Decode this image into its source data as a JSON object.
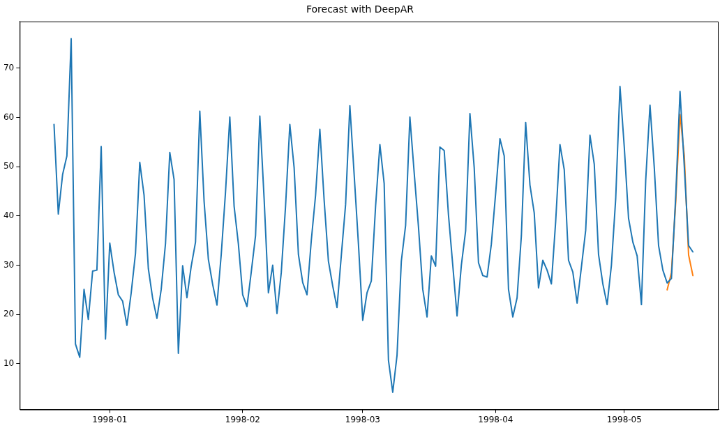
{
  "chart_data": {
    "type": "line",
    "title": "Forecast with DeepAR",
    "x": [
      "1997-12-19",
      "1997-12-20",
      "1997-12-21",
      "1997-12-22",
      "1997-12-23",
      "1997-12-24",
      "1997-12-25",
      "1997-12-26",
      "1997-12-27",
      "1997-12-28",
      "1997-12-29",
      "1997-12-30",
      "1997-12-31",
      "1998-01-01",
      "1998-01-02",
      "1998-01-03",
      "1998-01-04",
      "1998-01-05",
      "1998-01-06",
      "1998-01-07",
      "1998-01-08",
      "1998-01-09",
      "1998-01-10",
      "1998-01-11",
      "1998-01-12",
      "1998-01-13",
      "1998-01-14",
      "1998-01-15",
      "1998-01-16",
      "1998-01-17",
      "1998-01-18",
      "1998-01-19",
      "1998-01-20",
      "1998-01-21",
      "1998-01-22",
      "1998-01-23",
      "1998-01-24",
      "1998-01-25",
      "1998-01-26",
      "1998-01-27",
      "1998-01-28",
      "1998-01-29",
      "1998-01-30",
      "1998-01-31",
      "1998-02-01",
      "1998-02-02",
      "1998-02-03",
      "1998-02-04",
      "1998-02-05",
      "1998-02-06",
      "1998-02-07",
      "1998-02-08",
      "1998-02-09",
      "1998-02-10",
      "1998-02-11",
      "1998-02-12",
      "1998-02-13",
      "1998-02-14",
      "1998-02-15",
      "1998-02-16",
      "1998-02-17",
      "1998-02-18",
      "1998-02-19",
      "1998-02-20",
      "1998-02-21",
      "1998-02-22",
      "1998-02-23",
      "1998-02-24",
      "1998-02-25",
      "1998-02-26",
      "1998-02-27",
      "1998-02-28",
      "1998-03-01",
      "1998-03-02",
      "1998-03-03",
      "1998-03-04",
      "1998-03-05",
      "1998-03-06",
      "1998-03-07",
      "1998-03-08",
      "1998-03-09",
      "1998-03-10",
      "1998-03-11",
      "1998-03-12",
      "1998-03-13",
      "1998-03-14",
      "1998-03-15",
      "1998-03-16",
      "1998-03-17",
      "1998-03-18",
      "1998-03-19",
      "1998-03-20",
      "1998-03-21",
      "1998-03-22",
      "1998-03-23",
      "1998-03-24",
      "1998-03-25",
      "1998-03-26",
      "1998-03-27",
      "1998-03-28",
      "1998-03-29",
      "1998-03-30",
      "1998-03-31",
      "1998-04-01",
      "1998-04-02",
      "1998-04-03",
      "1998-04-04",
      "1998-04-05",
      "1998-04-06",
      "1998-04-07",
      "1998-04-08",
      "1998-04-09",
      "1998-04-10",
      "1998-04-11",
      "1998-04-12",
      "1998-04-13",
      "1998-04-14",
      "1998-04-15",
      "1998-04-16",
      "1998-04-17",
      "1998-04-18",
      "1998-04-19",
      "1998-04-20",
      "1998-04-21",
      "1998-04-22",
      "1998-04-23",
      "1998-04-24",
      "1998-04-25",
      "1998-04-26",
      "1998-04-27",
      "1998-04-28",
      "1998-04-29",
      "1998-04-30",
      "1998-05-01",
      "1998-05-02",
      "1998-05-03",
      "1998-05-04",
      "1998-05-05",
      "1998-05-06",
      "1998-05-07",
      "1998-05-08",
      "1998-05-09",
      "1998-05-10",
      "1998-05-11",
      "1998-05-12",
      "1998-05-13",
      "1998-05-14",
      "1998-05-15",
      "1998-05-16",
      "1998-05-17"
    ],
    "series": [
      {
        "color": "#1f77b4",
        "values": [
          58.6,
          40.4,
          48.4,
          52.2,
          76,
          14,
          11.3,
          25.1,
          19,
          28.8,
          29,
          54.1,
          15,
          34.5,
          28.6,
          24,
          22.7,
          17.8,
          24.4,
          32.4,
          50.9,
          44.2,
          29.3,
          23.3,
          19.2,
          25.1,
          34.4,
          52.9,
          47.4,
          12.1,
          29.9,
          23.4,
          29.8,
          34.7,
          61.3,
          43,
          31.2,
          26.1,
          21.9,
          32.2,
          44.9,
          60.1,
          42,
          34.3,
          24,
          21.6,
          28.6,
          36,
          60.3,
          43.5,
          24.4,
          30,
          20.2,
          28.5,
          42,
          58.6,
          49.8,
          32.2,
          26.5,
          24,
          35,
          44.2,
          57.6,
          43.2,
          30.8,
          25.8,
          21.4,
          31.9,
          42.3,
          62.4,
          48.4,
          34.3,
          18.8,
          24.4,
          26.8,
          42,
          54.5,
          46.6,
          10.7,
          4.2,
          11.7,
          30.8,
          38.1,
          60.1,
          48.8,
          37.8,
          25.1,
          19.5,
          31.9,
          29.8,
          54,
          53.3,
          40.2,
          30,
          19.7,
          30,
          37,
          60.8,
          49.8,
          30.5,
          27.9,
          27.6,
          34.3,
          44.6,
          55.7,
          52.2,
          25.1,
          19.5,
          23.4,
          36,
          59,
          46.3,
          40.6,
          25.4,
          31,
          29,
          26.2,
          38.9,
          54.5,
          49.4,
          31,
          28.6,
          22.3,
          29.6,
          37.1,
          56.4,
          50.5,
          32.2,
          26.2,
          22,
          30,
          43.5,
          66.3,
          54,
          39.5,
          34.7,
          31.9,
          22,
          47.3,
          62.5,
          49.8,
          34,
          29,
          26.4,
          27.3,
          44,
          65.3,
          50,
          34,
          32.7
        ]
      },
      {
        "color": "#ff7f0e",
        "x": [
          "1998-05-11",
          "1998-05-12",
          "1998-05-13",
          "1998-05-14",
          "1998-05-15",
          "1998-05-16",
          "1998-05-17"
        ],
        "values": [
          25,
          28.5,
          42.9,
          60.6,
          52.2,
          32.1,
          27.9
        ]
      }
    ],
    "xlim": [
      "1997-12-11",
      "1998-05-23"
    ],
    "xticks": [
      {
        "value": "1998-01",
        "label": "1998-01"
      },
      {
        "value": "1998-02",
        "label": "1998-02"
      },
      {
        "value": "1998-03",
        "label": "1998-03"
      },
      {
        "value": "1998-04",
        "label": "1998-04"
      },
      {
        "value": "1998-05",
        "label": "1998-05"
      }
    ],
    "ylim": [
      0.7,
      79.5
    ],
    "yticks": [
      10,
      20,
      30,
      40,
      50,
      60,
      70
    ],
    "grid": false,
    "legend": false,
    "marker": "none",
    "line_style": "solid"
  }
}
